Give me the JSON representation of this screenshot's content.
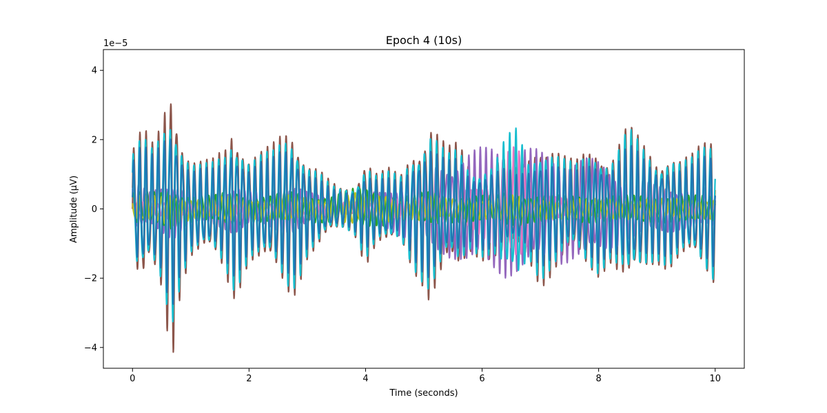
{
  "chart_data": {
    "type": "line",
    "title": "Epoch 4 (10s)",
    "xlabel": "Time (seconds)",
    "ylabel": "Amplitude (µV)",
    "y_offset_text": "1e−5",
    "xlim": [
      -0.5,
      10.5
    ],
    "ylim": [
      -4.6,
      4.6
    ],
    "x_ticks": [
      0,
      2,
      4,
      6,
      8,
      10
    ],
    "x_tick_labels": [
      "0",
      "2",
      "4",
      "6",
      "8",
      "10"
    ],
    "y_ticks": [
      -4,
      -2,
      0,
      2,
      4
    ],
    "y_tick_labels": [
      "−4",
      "−2",
      "0",
      "2",
      "4"
    ],
    "y_scale_note": "values in units of 1e-5",
    "grid": false,
    "legend": "none",
    "x": [
      0,
      0.1,
      0.2,
      0.3,
      0.4,
      0.5,
      0.6,
      0.7,
      0.8,
      0.9,
      1.0,
      1.2,
      1.4,
      1.6,
      1.7,
      1.8,
      2.0,
      2.2,
      2.4,
      2.6,
      2.7,
      2.8,
      3.0,
      3.2,
      3.4,
      3.6,
      3.8,
      4.0,
      4.2,
      4.4,
      4.6,
      4.8,
      5.0,
      5.1,
      5.2,
      5.4,
      5.6,
      5.8,
      6.0,
      6.2,
      6.4,
      6.6,
      6.8,
      7.0,
      7.2,
      7.4,
      7.6,
      7.8,
      8.0,
      8.2,
      8.4,
      8.5,
      8.6,
      8.8,
      9.0,
      9.2,
      9.4,
      9.6,
      9.8,
      10.0
    ],
    "series": [
      {
        "color": "#8c564b",
        "envelope": [
          1.9,
          2.2,
          2.5,
          1.8,
          2.2,
          2.6,
          3.8,
          4.2,
          2.7,
          2.0,
          1.5,
          1.4,
          1.5,
          2.0,
          2.7,
          2.5,
          1.6,
          1.7,
          1.9,
          2.4,
          2.6,
          2.5,
          1.5,
          1.2,
          0.8,
          0.6,
          0.7,
          1.7,
          1.1,
          1.2,
          1.0,
          1.8,
          2.3,
          2.8,
          2.5,
          1.8,
          2.0,
          1.3,
          1.5,
          1.5,
          1.5,
          1.2,
          1.6,
          2.3,
          2.0,
          1.6,
          1.4,
          1.8,
          2.0,
          1.6,
          2.2,
          2.5,
          2.3,
          1.9,
          1.6,
          1.8,
          1.5,
          1.6,
          2.0,
          2.3
        ],
        "freq": 9.6,
        "phase": 0.0
      },
      {
        "color": "#ff7f0e",
        "envelope": [
          1.6,
          1.9,
          2.0,
          1.6,
          1.9,
          2.1,
          2.8,
          3.0,
          2.1,
          1.7,
          1.3,
          1.2,
          1.3,
          1.6,
          2.1,
          2.0,
          1.4,
          1.5,
          1.6,
          2.0,
          2.1,
          2.0,
          1.3,
          1.0,
          0.7,
          0.5,
          0.6,
          1.3,
          1.0,
          1.0,
          0.9,
          1.5,
          2.1,
          2.3,
          2.0,
          1.5,
          1.6,
          1.1,
          1.3,
          1.3,
          1.2,
          1.0,
          1.3,
          1.9,
          1.6,
          1.3,
          1.2,
          1.5,
          1.7,
          1.4,
          1.8,
          2.0,
          1.9,
          1.6,
          1.4,
          1.5,
          1.3,
          1.4,
          1.7,
          1.9
        ],
        "freq": 9.6,
        "phase": 0.35
      },
      {
        "color": "#9467bd",
        "envelope": [
          0.6,
          0.7,
          0.6,
          0.5,
          0.6,
          0.7,
          0.8,
          0.9,
          0.7,
          0.6,
          0.5,
          0.5,
          0.5,
          0.6,
          0.7,
          0.7,
          0.5,
          0.5,
          0.6,
          0.7,
          0.7,
          0.7,
          0.5,
          0.4,
          0.3,
          0.3,
          0.3,
          0.5,
          0.5,
          0.6,
          0.8,
          1.0,
          1.1,
          1.2,
          1.3,
          1.4,
          1.5,
          1.7,
          1.8,
          1.9,
          2.0,
          1.9,
          1.8,
          1.7,
          1.6,
          1.6,
          1.5,
          1.5,
          1.4,
          1.2,
          1.0,
          0.9,
          0.9,
          0.8,
          0.7,
          0.7,
          0.6,
          0.6,
          0.6,
          0.6
        ],
        "freq": 10.4,
        "phase": 1.1
      },
      {
        "color": "#e377c2",
        "envelope": [
          0.2,
          0.2,
          0.2,
          0.2,
          0.2,
          0.2,
          0.3,
          0.3,
          0.2,
          0.2,
          0.2,
          0.2,
          0.2,
          0.2,
          0.2,
          0.2,
          0.2,
          0.2,
          0.2,
          0.2,
          0.2,
          0.2,
          0.2,
          0.2,
          0.2,
          0.2,
          0.2,
          0.2,
          0.2,
          0.3,
          0.3,
          0.3,
          0.4,
          0.4,
          0.4,
          0.4,
          0.5,
          0.6,
          0.8,
          1.1,
          1.6,
          1.9,
          1.0,
          0.5,
          0.4,
          0.3,
          0.3,
          0.3,
          0.3,
          0.3,
          0.3,
          0.3,
          0.3,
          0.3,
          0.3,
          0.3,
          0.3,
          0.3,
          0.3,
          0.3
        ],
        "freq": 11.0,
        "phase": 2.0
      },
      {
        "color": "#2ca02c",
        "envelope": [
          0.5,
          0.5,
          0.5,
          0.5,
          0.5,
          0.5,
          0.6,
          0.6,
          0.5,
          0.5,
          0.4,
          0.4,
          0.4,
          0.5,
          0.5,
          0.5,
          0.4,
          0.4,
          0.4,
          0.5,
          0.5,
          0.5,
          0.4,
          0.4,
          0.4,
          0.5,
          0.6,
          0.6,
          0.5,
          0.5,
          0.4,
          0.4,
          0.5,
          0.5,
          0.5,
          0.4,
          0.4,
          0.4,
          0.4,
          0.4,
          0.5,
          0.5,
          0.4,
          0.4,
          0.4,
          0.4,
          0.4,
          0.4,
          0.4,
          0.4,
          0.4,
          0.4,
          0.4,
          0.4,
          0.4,
          0.4,
          0.4,
          0.4,
          0.4,
          0.4
        ],
        "freq": 8.5,
        "phase": 0.7
      },
      {
        "color": "#bcbd22",
        "envelope": [
          0.4,
          0.4,
          0.4,
          0.4,
          0.4,
          0.4,
          0.5,
          0.5,
          0.4,
          0.4,
          0.3,
          0.3,
          0.3,
          0.4,
          0.4,
          0.4,
          0.3,
          0.3,
          0.3,
          0.4,
          0.4,
          0.4,
          0.3,
          0.3,
          0.3,
          0.4,
          0.5,
          0.4,
          0.4,
          0.4,
          0.3,
          0.3,
          0.4,
          0.4,
          0.4,
          0.3,
          0.3,
          0.3,
          0.3,
          0.3,
          0.4,
          0.4,
          0.3,
          0.3,
          0.3,
          0.3,
          0.3,
          0.3,
          0.3,
          0.3,
          0.3,
          0.3,
          0.3,
          0.3,
          0.3,
          0.3,
          0.3,
          0.3,
          0.3,
          0.3
        ],
        "freq": 7.8,
        "phase": 2.4
      },
      {
        "color": "#17becf",
        "envelope": [
          1.7,
          2.0,
          2.1,
          1.7,
          2.0,
          2.3,
          3.0,
          3.3,
          2.4,
          1.8,
          1.4,
          1.3,
          1.4,
          1.8,
          2.4,
          2.3,
          1.5,
          1.6,
          1.7,
          2.2,
          2.4,
          2.3,
          1.4,
          1.1,
          0.7,
          0.6,
          0.7,
          1.5,
          1.0,
          1.1,
          1.0,
          1.7,
          2.2,
          2.5,
          2.2,
          1.6,
          1.8,
          1.2,
          1.4,
          1.4,
          2.1,
          2.4,
          1.5,
          2.1,
          1.8,
          1.5,
          1.3,
          1.7,
          1.9,
          1.5,
          2.0,
          2.4,
          2.2,
          1.8,
          1.5,
          1.7,
          1.4,
          1.5,
          1.9,
          2.2
        ],
        "freq": 9.6,
        "phase": 0.6
      },
      {
        "color": "#1f77b4",
        "envelope": [
          1.5,
          1.8,
          1.9,
          1.5,
          1.8,
          2.0,
          2.6,
          2.8,
          2.0,
          1.6,
          1.2,
          1.2,
          1.2,
          1.5,
          2.0,
          1.9,
          1.3,
          1.4,
          1.5,
          1.9,
          2.0,
          1.9,
          1.2,
          0.9,
          0.6,
          0.5,
          0.6,
          1.2,
          0.9,
          0.9,
          0.8,
          1.4,
          1.9,
          2.1,
          1.8,
          1.4,
          1.5,
          1.0,
          1.2,
          1.2,
          1.2,
          1.0,
          1.2,
          1.7,
          1.5,
          1.2,
          1.1,
          1.4,
          1.6,
          1.3,
          1.6,
          1.9,
          1.8,
          1.5,
          1.3,
          1.4,
          1.2,
          1.3,
          1.6,
          1.8
        ],
        "freq": 9.6,
        "phase": 0.2
      }
    ]
  }
}
